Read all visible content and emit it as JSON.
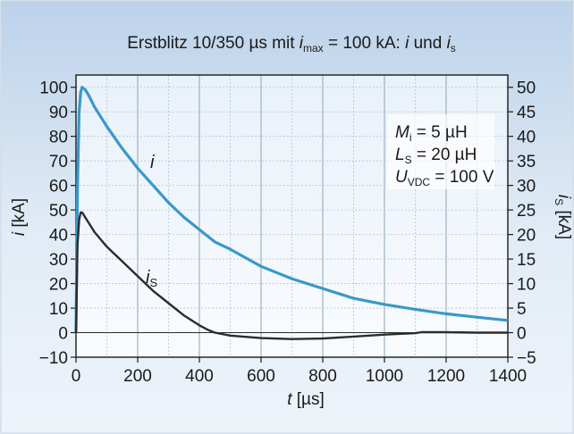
{
  "chart_data": {
    "type": "line",
    "title": {
      "prefix": "Erstblitz 10/350 µs mit ",
      "i_sym": "i",
      "i_sub": "max",
      "mid": " = 100 kA: ",
      "i2": "i",
      "und": " und ",
      "is_sym": "i",
      "is_sub": "s"
    },
    "xlabel": {
      "sym": "t",
      "unit": " [µs]"
    },
    "ylabel_left": {
      "sym": "i",
      "unit": " [kA]"
    },
    "ylabel_right": {
      "sym": "i",
      "sub": "S",
      "unit": " [kA]"
    },
    "xlim": [
      0,
      1400
    ],
    "ylim_left": [
      -10,
      105
    ],
    "ylim_right": [
      -5,
      52.5
    ],
    "x_ticks": [
      "0",
      "200",
      "400",
      "600",
      "800",
      "1000",
      "1200",
      "1400"
    ],
    "y_left_ticks": [
      "100",
      "90",
      "80",
      "70",
      "60",
      "50",
      "40",
      "30",
      "20",
      "10",
      "0",
      "−10"
    ],
    "y_right_ticks": [
      "50",
      "45",
      "40",
      "35",
      "30",
      "25",
      "20",
      "15",
      "10",
      "5",
      "0",
      "−5"
    ],
    "grid": true,
    "annotations": {
      "Mi": {
        "sym": "M",
        "sub": "i",
        "val": " = 5 µH"
      },
      "Ls": {
        "sym": "L",
        "sub": "S",
        "val": " = 20 µH"
      },
      "Uvdc": {
        "sym": "U",
        "sub": "VDC",
        "val": " = 100 V"
      },
      "label_i": "i",
      "label_is": {
        "sym": "i",
        "sub": "S"
      }
    },
    "series": [
      {
        "axis": "left",
        "color": "#3a98c8",
        "x": [
          0,
          5,
          10,
          15,
          20,
          30,
          40,
          60,
          80,
          100,
          150,
          200,
          250,
          300,
          350,
          400,
          450,
          500,
          600,
          700,
          800,
          900,
          1000,
          1100,
          1200,
          1300,
          1400
        ],
        "y": [
          0,
          60,
          90,
          98,
          100,
          99,
          97,
          92,
          88,
          84,
          75,
          67,
          60,
          53,
          47,
          42,
          37,
          34,
          27,
          22,
          18,
          14,
          11.5,
          9.5,
          7.7,
          6.3,
          5
        ]
      },
      {
        "axis": "right",
        "color": "#2b2b2b",
        "x": [
          0,
          5,
          10,
          15,
          20,
          30,
          40,
          60,
          80,
          100,
          150,
          200,
          250,
          300,
          350,
          400,
          430,
          450,
          500,
          600,
          700,
          800,
          900,
          1000,
          1100,
          1120,
          1200,
          1300,
          1400
        ],
        "y": [
          0,
          18,
          23,
          24.5,
          24.5,
          23.5,
          22.5,
          20.5,
          19,
          17.5,
          14.5,
          11.5,
          8.5,
          6,
          3.5,
          1.5,
          0.5,
          0,
          -0.6,
          -1.1,
          -1.3,
          -1.2,
          -0.8,
          -0.4,
          -0.1,
          0.1,
          0.1,
          0,
          0
        ]
      }
    ]
  }
}
